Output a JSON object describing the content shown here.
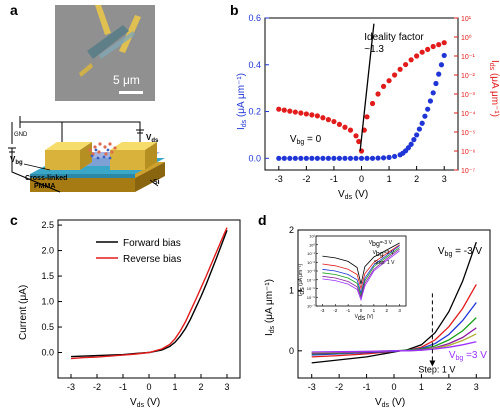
{
  "panels": {
    "a": {
      "label": "a",
      "scale_bar": "5 μm",
      "labels": {
        "gnd": "GND",
        "vds": "V",
        "vds_sub": "ds",
        "vbg": "V",
        "vbg_sub": "bg",
        "pmma_line1": "Cross-linked",
        "pmma_line2": "PMMA",
        "si": "Si"
      }
    },
    "b": {
      "label": "b"
    },
    "c": {
      "label": "c"
    },
    "d": {
      "label": "d"
    }
  },
  "chart_data": [
    {
      "id": "b",
      "type": "scatter",
      "xlabel": "V",
      "xlabel_sub": "ds",
      "xlabel_unit": " (V)",
      "ylabel_left": "I",
      "ylabel_left_sub": "ds",
      "ylabel_left_unit": " (μA μm⁻¹)",
      "ylabel_right": "I",
      "ylabel_right_sub": "ds",
      "ylabel_right_unit": " (μA μm⁻¹)",
      "xlim": [
        -3.5,
        3.5
      ],
      "ylim_left": [
        -0.05,
        0.6
      ],
      "ylim_right_log": [
        -7,
        1
      ],
      "x_ticks": [
        -3,
        -2,
        -1,
        0,
        1,
        2,
        3
      ],
      "y_left_ticks": [
        0.0,
        0.2,
        0.4,
        0.6
      ],
      "y_left_tick_labels": [
        "0.0",
        "0.2",
        "0.4",
        "0.6"
      ],
      "y_right_ticks": [
        -7,
        -6,
        -5,
        -4,
        -3,
        -2,
        -1,
        0,
        1
      ],
      "y_right_tick_labels": [
        "10⁻⁷",
        "10⁻⁶",
        "10⁻⁵",
        "10⁻⁴",
        "10⁻³",
        "10⁻²",
        "10⁻¹",
        "10⁰",
        "10¹"
      ],
      "annotation_line1": "Ideality factor",
      "annotation_line2": "~1.3",
      "condition": "V",
      "condition_sub": "bg",
      "condition_value": " = 0",
      "series": [
        {
          "axis": "left",
          "color": "#1f35d6",
          "x": [
            -3.0,
            -2.8,
            -2.6,
            -2.4,
            -2.2,
            -2.0,
            -1.8,
            -1.6,
            -1.4,
            -1.2,
            -1.0,
            -0.8,
            -0.6,
            -0.4,
            -0.2,
            0.0,
            0.2,
            0.4,
            0.6,
            0.8,
            1.0,
            1.2,
            1.4,
            1.5,
            1.6,
            1.7,
            1.8,
            1.9,
            2.0,
            2.1,
            2.2,
            2.3,
            2.4,
            2.5,
            2.6,
            2.7,
            2.8,
            2.9,
            3.0
          ],
          "y": [
            0,
            0,
            0,
            0,
            0,
            0,
            0,
            0,
            0,
            0,
            0,
            0,
            0,
            0,
            0,
            0,
            0,
            0,
            0.001,
            0.002,
            0.004,
            0.008,
            0.015,
            0.022,
            0.032,
            0.045,
            0.06,
            0.08,
            0.1,
            0.125,
            0.15,
            0.18,
            0.21,
            0.245,
            0.28,
            0.32,
            0.36,
            0.4,
            0.44
          ]
        },
        {
          "axis": "right",
          "color": "#e21b1b",
          "x": [
            -3.0,
            -2.8,
            -2.6,
            -2.4,
            -2.2,
            -2.0,
            -1.8,
            -1.6,
            -1.4,
            -1.2,
            -1.0,
            -0.8,
            -0.6,
            -0.4,
            -0.2,
            -0.1,
            0.0,
            0.1,
            0.2,
            0.4,
            0.6,
            0.8,
            1.0,
            1.2,
            1.4,
            1.6,
            1.8,
            2.0,
            2.2,
            2.4,
            2.6,
            2.8,
            3.0
          ],
          "y_log": [
            -3.8,
            -3.85,
            -3.9,
            -3.95,
            -4.0,
            -4.05,
            -4.1,
            -4.15,
            -4.25,
            -4.35,
            -4.45,
            -4.6,
            -4.75,
            -4.9,
            -5.2,
            -5.5,
            -6.0,
            -4.9,
            -4.2,
            -3.5,
            -3.0,
            -2.6,
            -2.3,
            -2.0,
            -1.7,
            -1.45,
            -1.2,
            -1.0,
            -0.8,
            -0.65,
            -0.5,
            -0.4,
            -0.3
          ]
        }
      ]
    },
    {
      "id": "c",
      "type": "line",
      "xlabel": "V",
      "xlabel_sub": "ds",
      "xlabel_unit": " (V)",
      "ylabel": "Current (μA)",
      "xlim": [
        -3.5,
        3.5
      ],
      "ylim": [
        -0.5,
        2.6
      ],
      "x_ticks": [
        -3,
        -2,
        -1,
        0,
        1,
        2,
        3
      ],
      "y_ticks": [
        0.0,
        0.5,
        1.0,
        1.5,
        2.0,
        2.5
      ],
      "y_tick_labels": [
        "0.0",
        "0.5",
        "1.0",
        "1.5",
        "2.0",
        "2.5"
      ],
      "legend_position": "top-left",
      "series": [
        {
          "name": "Forward bias",
          "color": "#000000",
          "x": [
            -3.0,
            -2.5,
            -2.0,
            -1.5,
            -1.0,
            -0.5,
            0.0,
            0.5,
            0.8,
            1.0,
            1.2,
            1.4,
            1.6,
            1.8,
            2.0,
            2.2,
            2.4,
            2.6,
            2.8,
            3.0
          ],
          "y": [
            -0.08,
            -0.07,
            -0.06,
            -0.05,
            -0.04,
            -0.02,
            0.0,
            0.05,
            0.12,
            0.2,
            0.32,
            0.47,
            0.66,
            0.88,
            1.1,
            1.34,
            1.6,
            1.86,
            2.13,
            2.4
          ]
        },
        {
          "name": "Reverse bias",
          "color": "#e21b1b",
          "x": [
            -3.0,
            -2.5,
            -2.0,
            -1.5,
            -1.0,
            -0.5,
            0.0,
            0.5,
            0.8,
            1.0,
            1.2,
            1.4,
            1.6,
            1.8,
            2.0,
            2.2,
            2.4,
            2.6,
            2.8,
            3.0
          ],
          "y": [
            -0.12,
            -0.1,
            -0.09,
            -0.07,
            -0.05,
            -0.03,
            0.0,
            0.07,
            0.16,
            0.27,
            0.42,
            0.6,
            0.82,
            1.04,
            1.27,
            1.5,
            1.74,
            1.98,
            2.22,
            2.45
          ]
        }
      ]
    },
    {
      "id": "d",
      "type": "line",
      "xlabel": "V",
      "xlabel_sub": "ds",
      "xlabel_unit": " (V)",
      "ylabel": "I",
      "ylabel_sub": "ds",
      "ylabel_unit": " (μA μm⁻¹)",
      "xlim": [
        -3.5,
        3.5
      ],
      "ylim": [
        -0.45,
        2.0
      ],
      "x_ticks": [
        -3,
        -2,
        -1,
        0,
        1,
        2,
        3
      ],
      "y_ticks": [
        0,
        1,
        2
      ],
      "y_tick_labels": [
        "0",
        "1",
        "2"
      ],
      "label_top": "V",
      "label_top_sub": "bg",
      "label_top_value": " = -3 V",
      "label_bottom": "V",
      "label_bottom_sub": "bg",
      "label_bottom_value": " =3 V",
      "step_label": "Step: 1 V",
      "dashed_x": 1.4,
      "series": [
        {
          "color": "#000000",
          "x": [
            -3,
            -2,
            -1,
            0,
            0.5,
            1,
            1.5,
            2,
            2.5,
            3
          ],
          "y": [
            -0.2,
            -0.15,
            -0.1,
            -0.02,
            0.02,
            0.1,
            0.3,
            0.65,
            1.15,
            1.8
          ]
        },
        {
          "color": "#e21b1b",
          "x": [
            -3,
            -2,
            -1,
            0,
            0.5,
            1,
            1.5,
            2,
            2.5,
            3
          ],
          "y": [
            -0.1,
            -0.08,
            -0.05,
            -0.01,
            0.01,
            0.06,
            0.18,
            0.4,
            0.7,
            1.1
          ]
        },
        {
          "color": "#1f35d6",
          "x": [
            -3,
            -2,
            -1,
            0,
            0.5,
            1,
            1.5,
            2,
            2.5,
            3
          ],
          "y": [
            -0.07,
            -0.05,
            -0.03,
            -0.01,
            0.01,
            0.04,
            0.12,
            0.27,
            0.5,
            0.8
          ]
        },
        {
          "color": "#1aa01a",
          "x": [
            -3,
            -2,
            -1,
            0,
            0.5,
            1,
            1.5,
            2,
            2.5,
            3
          ],
          "y": [
            -0.05,
            -0.04,
            -0.02,
            0,
            0.01,
            0.03,
            0.08,
            0.18,
            0.33,
            0.55
          ]
        },
        {
          "color": "#8a1aa0",
          "x": [
            -3,
            -2,
            -1,
            0,
            0.5,
            1,
            1.5,
            2,
            2.5,
            3
          ],
          "y": [
            -0.04,
            -0.03,
            -0.02,
            0,
            0,
            0.02,
            0.05,
            0.12,
            0.22,
            0.38
          ]
        },
        {
          "color": "#b0b030",
          "x": [
            -3,
            -2,
            -1,
            0,
            0.5,
            1,
            1.5,
            2,
            2.5,
            3
          ],
          "y": [
            -0.03,
            -0.02,
            -0.01,
            0,
            0,
            0.01,
            0.04,
            0.09,
            0.17,
            0.28
          ]
        },
        {
          "color": "#9b30ff",
          "x": [
            -3,
            -2,
            -1,
            0,
            0.5,
            1,
            1.5,
            2,
            2.5,
            3
          ],
          "y": [
            -0.02,
            -0.015,
            -0.01,
            0,
            0,
            0.01,
            0.03,
            0.06,
            0.1,
            0.15
          ]
        }
      ],
      "inset": {
        "type": "line",
        "ylabel": "I",
        "ylabel_sub": "ds",
        "ylabel_unit": " (μA μm⁻¹)",
        "xlabel": "V",
        "xlabel_sub": "ds",
        "xlabel_unit": " (V)",
        "xlim": [
          -3.5,
          3.5
        ],
        "ylim_log": [
          -7,
          1
        ],
        "x_ticks": [
          -3,
          -2,
          -1,
          0,
          1,
          2,
          3
        ],
        "y_ticks": [
          -7,
          -6,
          -5,
          -4,
          -3,
          -2,
          -1,
          0,
          1
        ],
        "y_tick_labels": [
          "10⁻⁷",
          "10⁻⁶",
          "10⁻⁵",
          "10⁻⁴",
          "10⁻³",
          "10⁻²",
          "10⁻¹",
          "10⁰",
          "10¹"
        ],
        "label_a": "V",
        "label_a_sub": "bg",
        "label_a_value": "=-3 V",
        "label_b": "V",
        "label_b_sub": "bg",
        "label_b_value": "=3 V",
        "step_label": "Step: 1 V",
        "series": [
          {
            "color": "#000000",
            "x": [
              -3,
              -2,
              -1,
              -0.3,
              0,
              0.3,
              1,
              2,
              3
            ],
            "y_log": [
              -1.3,
              -1.5,
              -1.9,
              -2.6,
              -4.5,
              -2.5,
              -1.4,
              -0.6,
              0.2
            ]
          },
          {
            "color": "#e21b1b",
            "x": [
              -3,
              -2,
              -1,
              -0.3,
              0,
              0.3,
              1,
              2,
              3
            ],
            "y_log": [
              -2.2,
              -2.4,
              -2.8,
              -3.4,
              -5.0,
              -3.3,
              -2.0,
              -1.0,
              0.0
            ]
          },
          {
            "color": "#1f35d6",
            "x": [
              -3,
              -2,
              -1,
              -0.3,
              0,
              0.3,
              1,
              2,
              3
            ],
            "y_log": [
              -2.8,
              -3.0,
              -3.4,
              -4.0,
              -5.5,
              -3.8,
              -2.3,
              -1.2,
              -0.1
            ]
          },
          {
            "color": "#1aa01a",
            "x": [
              -3,
              -2,
              -1,
              -0.3,
              0,
              0.3,
              1,
              2,
              3
            ],
            "y_log": [
              -3.2,
              -3.4,
              -3.8,
              -4.4,
              -5.8,
              -4.1,
              -2.5,
              -1.4,
              -0.3
            ]
          },
          {
            "color": "#8a1aa0",
            "x": [
              -3,
              -2,
              -1,
              -0.3,
              0,
              0.3,
              1,
              2,
              3
            ],
            "y_log": [
              -3.6,
              -3.8,
              -4.2,
              -4.8,
              -6.0,
              -4.4,
              -2.8,
              -1.6,
              -0.5
            ]
          },
          {
            "color": "#9b30ff",
            "x": [
              -3,
              -2,
              -1,
              -0.3,
              0,
              0.3,
              1,
              2,
              3
            ],
            "y_log": [
              -3.9,
              -4.1,
              -4.5,
              -5.1,
              -6.3,
              -4.7,
              -3.0,
              -1.8,
              -0.7
            ]
          }
        ]
      }
    }
  ]
}
